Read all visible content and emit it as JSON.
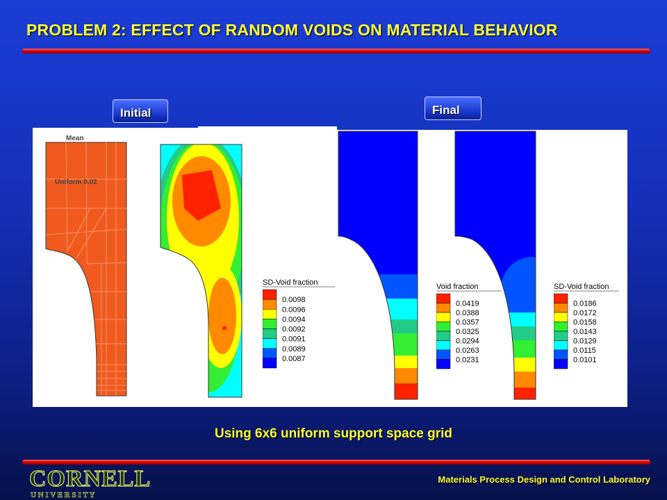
{
  "slide": {
    "title": "PROBLEM 2: EFFECT OF RANDOM VOIDS ON MATERIAL BEHAVIOR",
    "tag_initial": "Initial",
    "tag_final": "Final",
    "subtitle": "Using 6x6 uniform support space grid",
    "footer": "Materials Process Design and Control Laboratory",
    "logo_name": "CORNELL",
    "logo_sub": "U N I V E R S I T Y"
  },
  "initial_mean": {
    "label_mean": "Mean",
    "label_uniform": "Uniform 0.02",
    "color": "#f05a1e"
  },
  "legends": [
    {
      "title": "SD-Void fraction",
      "values": [
        "0.0098",
        "0.0096",
        "0.0094",
        "0.0092",
        "0.0091",
        "0.0089",
        "0.0087"
      ],
      "colors": [
        "#ff2200",
        "#ff8a00",
        "#ffff00",
        "#33ee33",
        "#22cc88",
        "#00ffff",
        "#0055ff",
        "#0000ff"
      ]
    },
    {
      "title": "Void fraction",
      "values": [
        "0.0419",
        "0.0388",
        "0.0357",
        "0.0325",
        "0.0294",
        "0.0263",
        "0.0231"
      ],
      "colors": [
        "#ff2200",
        "#ff8a00",
        "#ffff00",
        "#33ee33",
        "#22cc88",
        "#00ffff",
        "#0055ff",
        "#0000ff"
      ]
    },
    {
      "title": "SD-Void fraction",
      "values": [
        "0.0186",
        "0.0172",
        "0.0158",
        "0.0143",
        "0.0129",
        "0.0115",
        "0.0101"
      ],
      "colors": [
        "#ff2200",
        "#ff8a00",
        "#ffff00",
        "#33ee33",
        "#22cc88",
        "#00ffff",
        "#0055ff",
        "#0000ff"
      ]
    }
  ]
}
